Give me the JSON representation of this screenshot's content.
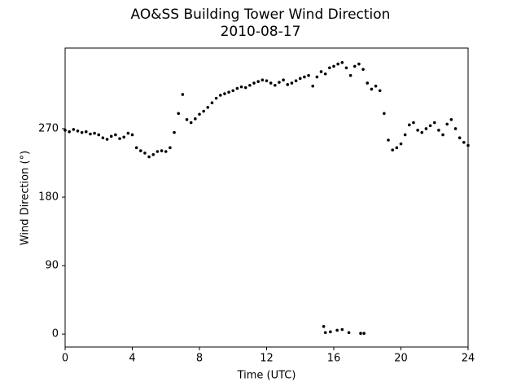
{
  "chart_data": {
    "type": "scatter",
    "title": "AO&SS Building Tower Wind Direction",
    "subtitle": "2010-08-17",
    "x_label": "Time (UTC)",
    "y_label": "Wind Direction (°)",
    "xlim": [
      0,
      24
    ],
    "xticks": [
      0,
      4,
      8,
      12,
      16,
      20,
      24
    ],
    "ylim": [
      -17,
      376
    ],
    "yticks": [
      0,
      90,
      180,
      270
    ],
    "grid": false,
    "series": [
      {
        "name": "Wind Direction",
        "color": "#000000",
        "x": [
          0,
          0.25,
          0.5,
          0.75,
          1,
          1.25,
          1.5,
          1.75,
          2,
          2.25,
          2.5,
          2.75,
          3,
          3.25,
          3.5,
          3.75,
          4,
          4.25,
          4.5,
          4.75,
          5,
          5.25,
          5.5,
          5.75,
          6,
          6.25,
          6.5,
          6.75,
          7,
          7.25,
          7.5,
          7.75,
          8,
          8.25,
          8.5,
          8.75,
          9,
          9.25,
          9.5,
          9.75,
          10,
          10.25,
          10.5,
          10.75,
          11,
          11.25,
          11.5,
          11.75,
          12,
          12.25,
          12.5,
          12.75,
          13,
          13.25,
          13.5,
          13.75,
          14,
          14.25,
          14.5,
          14.75,
          15,
          15.25,
          15.5,
          15.75,
          16,
          16.25,
          16.5,
          16.75,
          17,
          17.25,
          17.5,
          17.75,
          18,
          18.25,
          18.5,
          18.75,
          19,
          19.25,
          19.5,
          19.75,
          20,
          20.25,
          20.5,
          20.75,
          21,
          21.25,
          21.5,
          21.75,
          22,
          22.25,
          22.5,
          22.75,
          23,
          23.25,
          23.5,
          23.75,
          24,
          15.4,
          15.5,
          15.8,
          16.2,
          16.5,
          16.9,
          17.6,
          17.8
        ],
        "values": [
          268,
          266,
          269,
          267,
          265,
          266,
          263,
          264,
          262,
          258,
          256,
          260,
          262,
          257,
          259,
          264,
          262,
          245,
          241,
          238,
          233,
          236,
          240,
          241,
          240,
          245,
          265,
          290,
          315,
          282,
          278,
          283,
          289,
          293,
          298,
          304,
          310,
          314,
          316,
          318,
          320,
          323,
          325,
          324,
          327,
          330,
          332,
          334,
          333,
          330,
          327,
          331,
          334,
          328,
          330,
          333,
          336,
          338,
          340,
          326,
          338,
          345,
          342,
          350,
          352,
          355,
          357,
          350,
          340,
          352,
          355,
          348,
          330,
          322,
          326,
          320,
          290,
          255,
          242,
          245,
          250,
          262,
          275,
          278,
          268,
          265,
          270,
          274,
          278,
          268,
          262,
          276,
          282,
          270,
          258,
          252,
          248,
          10,
          2,
          3,
          5,
          6,
          2,
          1,
          1
        ]
      }
    ]
  }
}
